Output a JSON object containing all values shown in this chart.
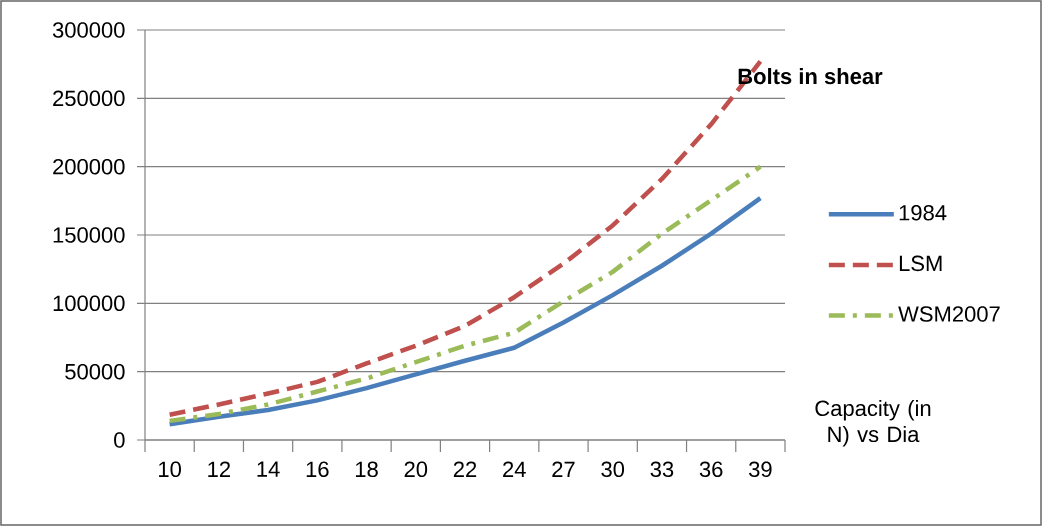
{
  "chart_data": {
    "type": "line",
    "title": "Bolts in shear",
    "categories": [
      "10",
      "12",
      "14",
      "16",
      "18",
      "20",
      "22",
      "24",
      "27",
      "30",
      "33",
      "36",
      "39"
    ],
    "series": [
      {
        "name": "1984",
        "color": "#4a7ebb",
        "line_style": "solid",
        "values": [
          11500,
          17000,
          22000,
          29000,
          38000,
          48000,
          58000,
          67500,
          86000,
          106000,
          127500,
          151000,
          177000
        ]
      },
      {
        "name": "LSM",
        "color": "#c0504d",
        "line_style": "dashed",
        "values": [
          18500,
          26000,
          34000,
          42500,
          56000,
          69000,
          83500,
          104500,
          129000,
          157000,
          191000,
          231000,
          277000
        ]
      },
      {
        "name": "WSM2007",
        "color": "#9bbb59",
        "line_style": "dashdot",
        "values": [
          14000,
          19000,
          26000,
          35500,
          45000,
          57000,
          69000,
          78500,
          101500,
          123000,
          151000,
          175500,
          200000
        ]
      }
    ],
    "ylim": [
      0,
      300000
    ],
    "yticks": [
      0,
      50000,
      100000,
      150000,
      200000,
      250000,
      300000
    ],
    "grid": "y",
    "legend": "right",
    "marker": "none",
    "annotations": [
      "Capacity (in N) vs Dia"
    ]
  }
}
